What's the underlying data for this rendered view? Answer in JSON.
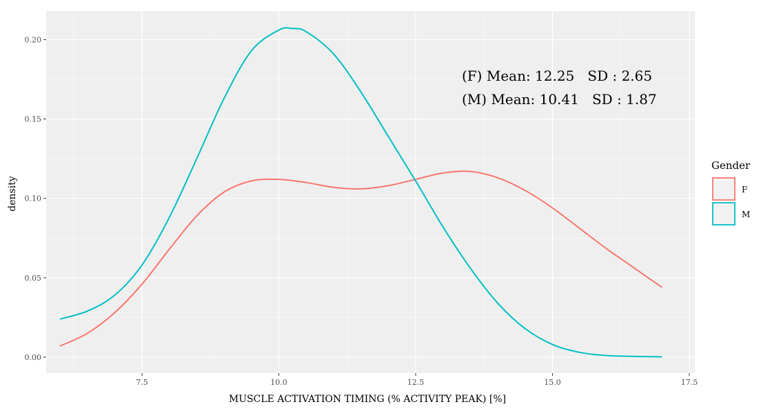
{
  "chart_data": {
    "type": "line",
    "subtype": "density",
    "title": "",
    "xlabel": "MUSCLE ACTIVATION TIMING (% ACTIVITY PEAK) [%]",
    "ylabel": "density",
    "xlim": [
      5.75,
      17.6
    ],
    "ylim": [
      -0.01,
      0.218
    ],
    "xticks": [
      7.5,
      10.0,
      12.5,
      15.0,
      17.5
    ],
    "xtick_labels": [
      "7.5",
      "10.0",
      "12.5",
      "15.0",
      "17.5"
    ],
    "yticks": [
      0.0,
      0.05,
      0.1,
      0.15,
      0.2
    ],
    "ytick_labels": [
      "0.00",
      "0.05",
      "0.10",
      "0.15",
      "0.20"
    ],
    "grid": true,
    "panel_background": "#efefef",
    "annotations": [
      "(F) Mean: 12.25   SD : 2.65",
      "(M) Mean: 10.41   SD : 1.87"
    ],
    "legend": {
      "title": "Gender",
      "position": "right",
      "entries": [
        "F",
        "M"
      ]
    },
    "series": [
      {
        "name": "F",
        "color": "#F8766D",
        "x": [
          6.0,
          6.5,
          7.0,
          7.5,
          8.0,
          8.5,
          9.0,
          9.5,
          10.0,
          10.5,
          11.0,
          11.5,
          12.0,
          12.5,
          13.0,
          13.5,
          14.0,
          14.5,
          15.0,
          15.5,
          16.0,
          16.5,
          17.0
        ],
        "y": [
          0.007,
          0.015,
          0.028,
          0.046,
          0.068,
          0.089,
          0.104,
          0.111,
          0.112,
          0.11,
          0.107,
          0.106,
          0.108,
          0.112,
          0.116,
          0.117,
          0.113,
          0.105,
          0.094,
          0.081,
          0.068,
          0.056,
          0.044
        ]
      },
      {
        "name": "M",
        "color": "#00BFC4",
        "x": [
          6.0,
          6.5,
          7.0,
          7.5,
          8.0,
          8.5,
          9.0,
          9.5,
          10.0,
          10.25,
          10.5,
          11.0,
          11.5,
          12.0,
          12.5,
          13.0,
          13.5,
          14.0,
          14.5,
          15.0,
          15.5,
          16.0,
          16.5,
          17.0
        ],
        "y": [
          0.024,
          0.029,
          0.039,
          0.058,
          0.088,
          0.125,
          0.163,
          0.193,
          0.206,
          0.207,
          0.205,
          0.191,
          0.167,
          0.139,
          0.111,
          0.082,
          0.056,
          0.034,
          0.018,
          0.008,
          0.003,
          0.001,
          0.0005,
          0.0002
        ]
      }
    ]
  }
}
